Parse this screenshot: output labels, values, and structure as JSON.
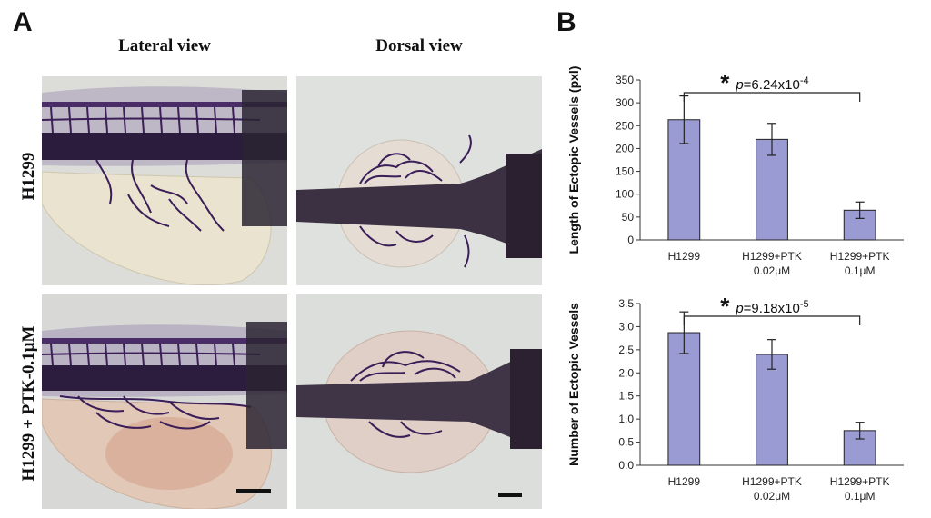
{
  "panels": {
    "a_letter": "A",
    "b_letter": "B"
  },
  "micrographs": {
    "col_titles": [
      "Lateral view",
      "Dorsal view"
    ],
    "row_labels": [
      "H1299",
      "H1299 + PTK-0.1μM"
    ]
  },
  "colors": {
    "bar_fill": "#9b9bd3",
    "bar_stroke": "#222222",
    "vessel": "#3b1d57",
    "yolk_pale": "#e8e2cc",
    "yolk_red": "#c98a70",
    "background_gray": "#d9dad6"
  },
  "chart_data": [
    {
      "type": "bar",
      "categories": [
        "H1299",
        "H1299+PTK\n0.02μM",
        "H1299+PTK\n0.1μM"
      ],
      "values": [
        263,
        220,
        65
      ],
      "errors": [
        52,
        35,
        18
      ],
      "ylabel": "Length of Ectopic Vessels  (pxl)",
      "ylim": [
        0,
        350
      ],
      "yticks": [
        "0",
        "50",
        "100",
        "150",
        "200",
        "250",
        "300",
        "350"
      ],
      "significance": {
        "from": 0,
        "to": 2,
        "star": "*",
        "p_prefix": "p",
        "p_text": "=6.24x10",
        "p_exp": "-4"
      }
    },
    {
      "type": "bar",
      "categories": [
        "H1299",
        "H1299+PTK\n0.02μM",
        "H1299+PTK\n0.1μM"
      ],
      "values": [
        2.87,
        2.4,
        0.75
      ],
      "errors": [
        0.45,
        0.32,
        0.18
      ],
      "ylabel": "Number of Ectopic Vessels",
      "ylim": [
        0,
        3.5
      ],
      "yticks": [
        "0.0",
        "0.5",
        "1.0",
        "1.5",
        "2.0",
        "2.5",
        "3.0",
        "3.5"
      ],
      "significance": {
        "from": 0,
        "to": 2,
        "star": "*",
        "p_prefix": "p",
        "p_text": "=9.18x10",
        "p_exp": "-5"
      }
    }
  ]
}
